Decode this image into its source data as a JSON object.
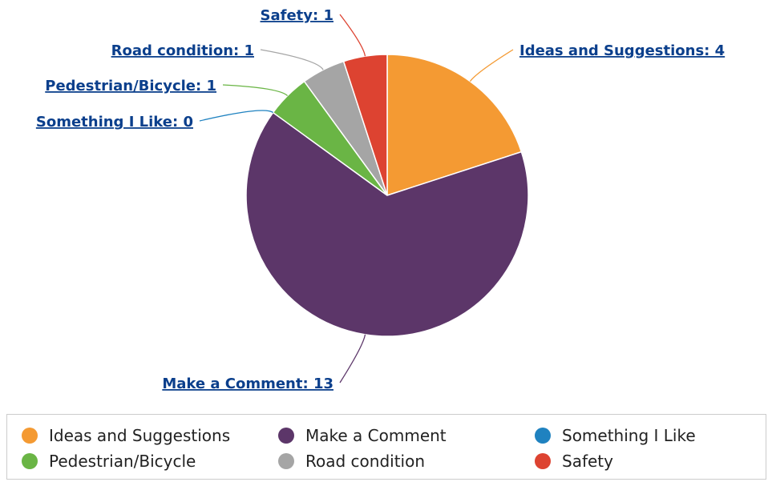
{
  "chart_data": {
    "type": "pie",
    "categories": [
      "Ideas and Suggestions",
      "Make a Comment",
      "Something I Like",
      "Pedestrian/Bicycle",
      "Road condition",
      "Safety"
    ],
    "values": [
      4,
      13,
      0,
      1,
      1,
      1
    ],
    "colors": [
      "#f49a33",
      "#5c3669",
      "#1f82c0",
      "#6ab545",
      "#a5a5a5",
      "#dd4331"
    ],
    "data_labels": [
      "Ideas and Suggestions: 4",
      "Make a Comment: 13",
      "Something I Like: 0",
      "Pedestrian/Bicycle: 1",
      "Road condition: 1",
      "Safety: 1"
    ],
    "legend": {
      "placement": "bottom",
      "items": [
        {
          "label": "Ideas and Suggestions",
          "color": "#f49a33"
        },
        {
          "label": "Make a Comment",
          "color": "#5c3669"
        },
        {
          "label": "Something I Like",
          "color": "#1f82c0"
        },
        {
          "label": "Pedestrian/Bicycle",
          "color": "#6ab545"
        },
        {
          "label": "Road condition",
          "color": "#a5a5a5"
        },
        {
          "label": "Safety",
          "color": "#dd4331"
        }
      ]
    },
    "label_color": "#0b3f8c"
  }
}
